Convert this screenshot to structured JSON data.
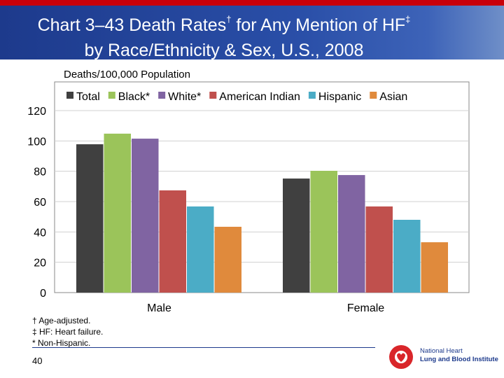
{
  "slide": {
    "title_line1": "Chart 3–43 Death Rates",
    "title_mark1": "†",
    "title_mid": " for Any Mention of HF",
    "title_mark2": "‡",
    "title_line2": "by Race/Ethnicity & Sex, U.S., 2008",
    "footnotes": [
      "† Age-adjusted.",
      "‡ HF: Heart failure.",
      "* Non-Hispanic."
    ],
    "page_number": "40",
    "logo": {
      "line1": "National Heart",
      "line2": "Lung and Blood Institute"
    }
  },
  "chart_data": {
    "type": "bar",
    "ylabel": "Deaths/100,000 Population",
    "ylim": [
      0,
      120
    ],
    "yticks": [
      0,
      20,
      40,
      60,
      80,
      100,
      120
    ],
    "grid": true,
    "legend_position": "top",
    "categories": [
      "Male",
      "Female"
    ],
    "series": [
      {
        "name": "Total",
        "color": "#404040",
        "values": [
          97.8,
          75.2
        ]
      },
      {
        "name": "Black*",
        "color": "#9bc45a",
        "values": [
          104.8,
          80.3
        ]
      },
      {
        "name": "White*",
        "color": "#8064a2",
        "values": [
          101.5,
          77.5
        ]
      },
      {
        "name": "American Indian",
        "color": "#c0504d",
        "values": [
          67.4,
          56.8
        ]
      },
      {
        "name": "Hispanic",
        "color": "#4bacc6",
        "values": [
          56.8,
          48.0
        ]
      },
      {
        "name": "Asian",
        "color": "#e08a3c",
        "values": [
          43.4,
          33.2
        ]
      }
    ]
  }
}
